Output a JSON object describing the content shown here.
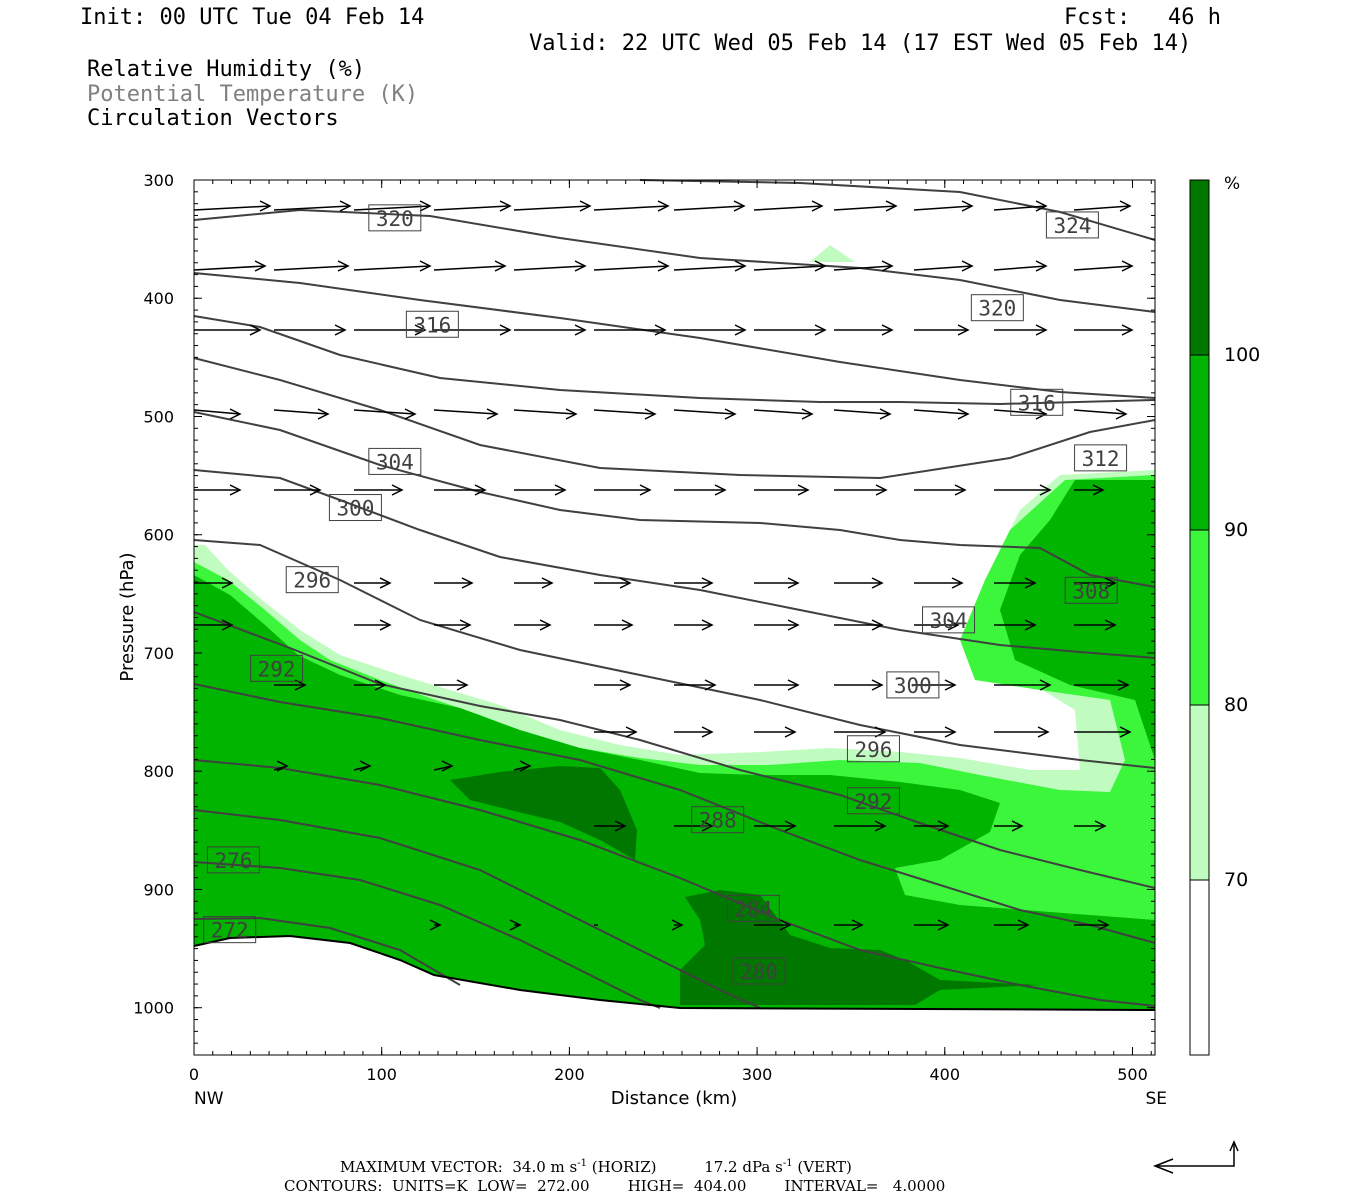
{
  "header": {
    "init": "Init: 00 UTC Tue 04 Feb 14",
    "fcst_label": "Fcst:",
    "fcst_value": "46 h",
    "valid": "Valid: 22 UTC Wed 05 Feb 14 (17 EST Wed 05 Feb 14)",
    "fields": [
      "Relative Humidity (%)",
      "Potential Temperature (K)",
      "Circulation Vectors"
    ]
  },
  "colors": {
    "rh70": "#c0fcc0",
    "rh80": "#3cf63c",
    "rh90": "#00b400",
    "rh100": "#007800",
    "contour": "#404040",
    "label_gray": "#808080"
  },
  "chart_data": {
    "type": "cross-section",
    "xlabel": "Distance (km)",
    "ylabel": "Pressure (hPa)",
    "xlim": [
      0,
      512
    ],
    "ylim": [
      1040,
      300
    ],
    "x_ticks": [
      "0",
      "100",
      "200",
      "300",
      "400",
      "500"
    ],
    "y_ticks": [
      "300",
      "400",
      "500",
      "600",
      "700",
      "800",
      "900",
      "1000"
    ],
    "endpoints": {
      "left": "NW",
      "right": "SE"
    },
    "colorbar": {
      "unit": "%",
      "levels": [
        "70",
        "80",
        "90",
        "100"
      ]
    },
    "theta_labels": [
      {
        "value": "324",
        "x": 468,
        "p": 338
      },
      {
        "value": "320",
        "x": 107,
        "p": 332
      },
      {
        "value": "320",
        "x": 428,
        "p": 408
      },
      {
        "value": "316",
        "x": 127,
        "p": 422
      },
      {
        "value": "316",
        "x": 449,
        "p": 488
      },
      {
        "value": "312",
        "x": 483,
        "p": 535
      },
      {
        "value": "308",
        "x": 478,
        "p": 647
      },
      {
        "value": "304",
        "x": 107,
        "p": 538
      },
      {
        "value": "304",
        "x": 402,
        "p": 672
      },
      {
        "value": "300",
        "x": 86,
        "p": 577
      },
      {
        "value": "300",
        "x": 383,
        "p": 727
      },
      {
        "value": "296",
        "x": 63,
        "p": 638
      },
      {
        "value": "296",
        "x": 362,
        "p": 781
      },
      {
        "value": "292",
        "x": 44,
        "p": 713
      },
      {
        "value": "292",
        "x": 362,
        "p": 825
      },
      {
        "value": "288",
        "x": 279,
        "p": 841
      },
      {
        "value": "284",
        "x": 298,
        "p": 916
      },
      {
        "value": "280",
        "x": 301,
        "p": 969
      },
      {
        "value": "276",
        "x": 21,
        "p": 875
      },
      {
        "value": "272",
        "x": 19,
        "p": 934
      }
    ],
    "footer": {
      "max_vector_label": "MAXIMUM VECTOR:",
      "max_vector_horiz": "34.0 m s",
      "horiz_tag": "(HORIZ)",
      "max_vector_vert": "17.2 dPa s",
      "vert_tag": "(VERT)",
      "exp": "-1",
      "contours": "CONTOURS:  UNITS=K  LOW=  272.00",
      "high": "HIGH=  404.00",
      "interval": "INTERVAL=   4.0000"
    }
  }
}
